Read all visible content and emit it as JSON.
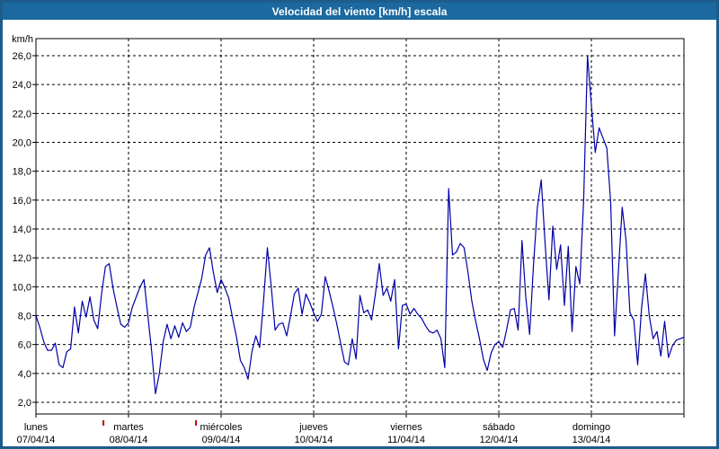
{
  "window": {
    "title": "Velocidad del viento [km/h] escala"
  },
  "colors": {
    "titlebar_bg": "#1B69A0",
    "titlebar_text": "#FFFFFF",
    "frame": "#1E5C8C",
    "background": "#FFFFFF",
    "grid": "#000000",
    "axis": "#000000",
    "line": "#0000A8",
    "red_marker": "#C00000"
  },
  "chart_data": {
    "type": "line",
    "title": "Velocidad del viento [km/h] escala",
    "ylabel": "km/h",
    "grid": "dashed",
    "legend": "none",
    "y_axis": {
      "min": 2.0,
      "max": 26.0,
      "step": 2.0,
      "tick_labels": [
        "2,0",
        "4,0",
        "6,0",
        "8,0",
        "10,0",
        "12,0",
        "14,0",
        "16,0",
        "18,0",
        "20,0",
        "22,0",
        "24,0",
        "26,0"
      ]
    },
    "x_axis": {
      "hours_per_day": 24,
      "days": [
        {
          "name": "lunes",
          "date": "07/04/14"
        },
        {
          "name": "martes",
          "date": "08/04/14"
        },
        {
          "name": "miércoles",
          "date": "09/04/14"
        },
        {
          "name": "jueves",
          "date": "10/04/14"
        },
        {
          "name": "viernes",
          "date": "11/04/14"
        },
        {
          "name": "sábado",
          "date": "12/04/14"
        },
        {
          "name": "domingo",
          "date": "13/04/14"
        }
      ],
      "red_markers": [
        {
          "day_index": 0,
          "hour": 17.5
        },
        {
          "day_index": 1,
          "hour": 17.5
        }
      ]
    },
    "series": [
      {
        "name": "Velocidad del viento [km/h]",
        "color": "#0000A8",
        "values": [
          8.0,
          7.2,
          6.2,
          5.6,
          5.6,
          6.1,
          4.6,
          4.4,
          5.5,
          5.7,
          8.6,
          6.8,
          9.0,
          7.9,
          9.3,
          7.7,
          7.1,
          9.5,
          11.4,
          11.6,
          9.9,
          8.6,
          7.4,
          7.2,
          7.5,
          8.6,
          9.3,
          10.0,
          10.5,
          8.0,
          5.5,
          2.6,
          4.0,
          6.2,
          7.4,
          6.4,
          7.3,
          6.5,
          7.5,
          6.9,
          7.2,
          8.6,
          9.6,
          10.6,
          12.2,
          12.7,
          11.0,
          9.6,
          10.5,
          9.9,
          9.2,
          7.8,
          6.5,
          4.9,
          4.4,
          3.6,
          5.5,
          6.6,
          5.8,
          9.0,
          12.7,
          10.0,
          7.0,
          7.4,
          7.5,
          6.6,
          8.0,
          9.5,
          9.9,
          8.1,
          9.5,
          8.9,
          8.2,
          7.6,
          8.1,
          10.7,
          9.7,
          8.6,
          7.4,
          6.1,
          4.8,
          4.6,
          6.4,
          5.0,
          9.4,
          8.2,
          8.4,
          7.7,
          9.5,
          11.6,
          9.4,
          9.9,
          9.0,
          10.5,
          5.7,
          8.7,
          8.8,
          8.1,
          8.5,
          8.1,
          7.8,
          7.3,
          6.9,
          6.8,
          7.0,
          6.4,
          4.4,
          16.8,
          12.2,
          12.4,
          13.0,
          12.7,
          11.0,
          9.0,
          7.6,
          6.4,
          5.0,
          4.2,
          5.4,
          6.0,
          6.2,
          5.8,
          7.0,
          8.4,
          8.5,
          7.0,
          13.2,
          9.3,
          6.7,
          11.5,
          15.5,
          17.4,
          13.0,
          9.1,
          14.2,
          11.2,
          12.9,
          8.7,
          12.8,
          6.9,
          11.4,
          10.2,
          16.0,
          26.0,
          22.6,
          19.3,
          21.0,
          20.3,
          19.6,
          15.8,
          6.6,
          11.0,
          15.5,
          13.2,
          8.2,
          7.7,
          4.6,
          8.5,
          10.9,
          8.0,
          6.4,
          6.9,
          5.2,
          7.6,
          5.1,
          5.9,
          6.3,
          6.4,
          6.5
        ]
      }
    ]
  }
}
